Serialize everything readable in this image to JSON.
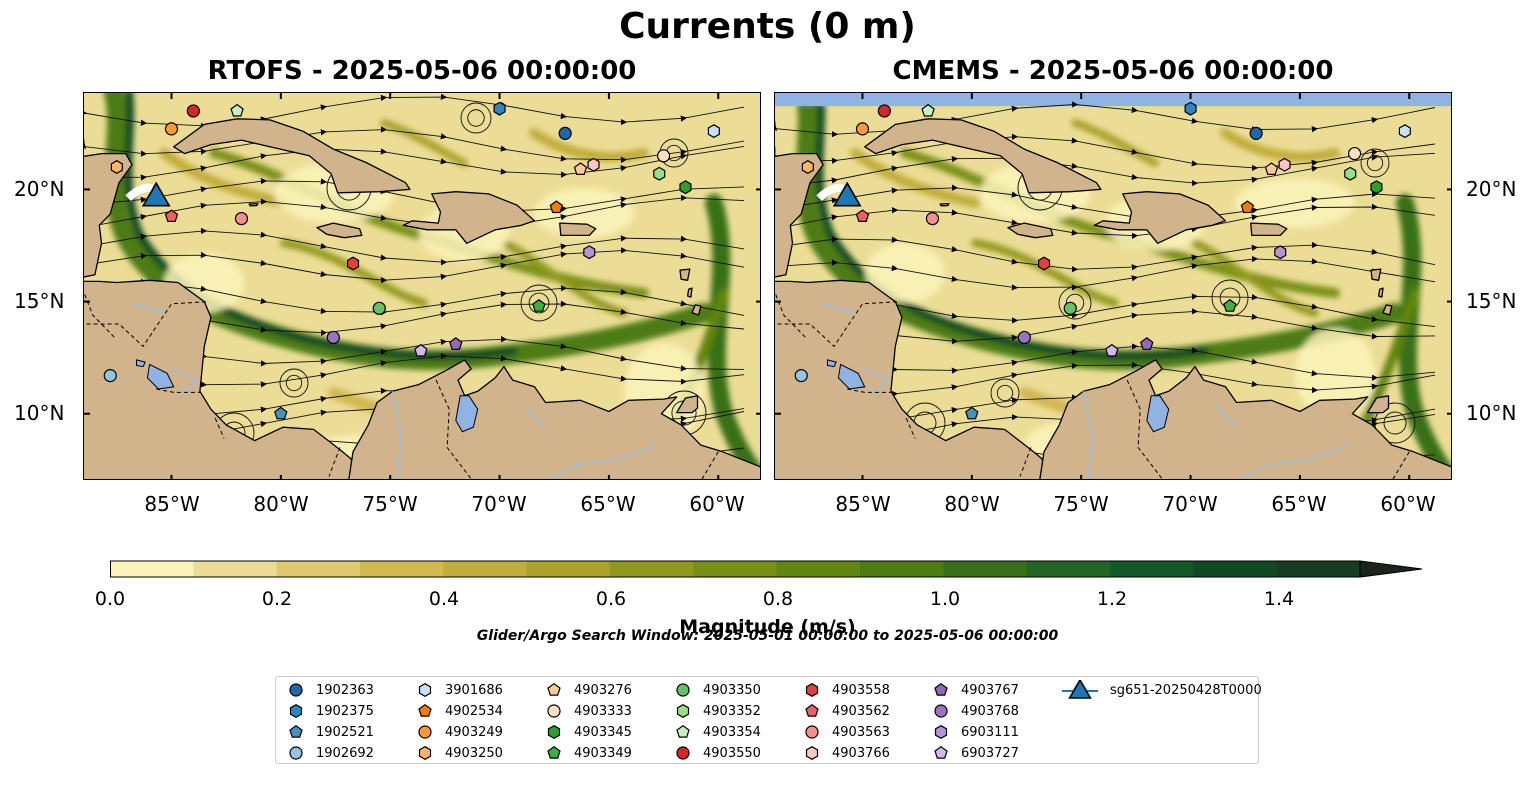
{
  "figure": {
    "title": "Currents (0 m)",
    "panels": [
      {
        "title": "RTOFS - 2025-05-06 00:00:00"
      },
      {
        "title": "CMEMS - 2025-05-06 00:00:00"
      }
    ],
    "lat_labels": [
      "20°N",
      "15°N",
      "10°N"
    ],
    "lon_labels": [
      "85°W",
      "80°W",
      "75°W",
      "70°W",
      "65°W",
      "60°W"
    ],
    "extent": {
      "lon_min": -89,
      "lon_max": -58,
      "lat_min": 7,
      "lat_max": 24.3
    }
  },
  "colorbar": {
    "label": "Magnitude (m/s)",
    "ticks": [
      "0.0",
      "0.2",
      "0.4",
      "0.6",
      "0.8",
      "1.0",
      "1.2",
      "1.4"
    ],
    "range": [
      0,
      1.5
    ],
    "extend": "max",
    "colors": [
      "#fbf3b9",
      "#ecdd96",
      "#dfc96e",
      "#d1b84f",
      "#c1ad3b",
      "#a8a22a",
      "#90981e",
      "#799016",
      "#628611",
      "#4d7c12",
      "#387017",
      "#236523",
      "#115925",
      "#0f4a24",
      "#173b23",
      "#1f2f1f",
      "#1a241a"
    ]
  },
  "search_window": "Glider/Argo Search Window: 2025-05-01 00:00:00 to 2025-05-06 00:00:00",
  "colors": {
    "land": "#d2b48c",
    "water": "#8fb4e3",
    "river": "#a2bdd9"
  },
  "legend": [
    {
      "label": "1902363",
      "marker": "circle",
      "color": "#2166ac"
    },
    {
      "label": "1902375",
      "marker": "hexagon",
      "color": "#2e86c1"
    },
    {
      "label": "1902521",
      "marker": "pentagon",
      "color": "#4393c3"
    },
    {
      "label": "1902692",
      "marker": "circle",
      "color": "#92c5de"
    },
    {
      "label": "3901686",
      "marker": "hexagon",
      "color": "#c6e2f5"
    },
    {
      "label": "4902534",
      "marker": "pentagon",
      "color": "#f57c00"
    },
    {
      "label": "4903249",
      "marker": "circle",
      "color": "#ff9933"
    },
    {
      "label": "4903250",
      "marker": "hexagon",
      "color": "#ffb366"
    },
    {
      "label": "4903276",
      "marker": "pentagon",
      "color": "#ffc896"
    },
    {
      "label": "4903333",
      "marker": "circle",
      "color": "#ffe0c0"
    },
    {
      "label": "4903345",
      "marker": "hexagon",
      "color": "#2ca02c"
    },
    {
      "label": "4903349",
      "marker": "pentagon",
      "color": "#3cb043"
    },
    {
      "label": "4903350",
      "marker": "circle",
      "color": "#66c266"
    },
    {
      "label": "4903352",
      "marker": "hexagon",
      "color": "#98df8a"
    },
    {
      "label": "4903354",
      "marker": "pentagon",
      "color": "#c7f2c0"
    },
    {
      "label": "4903550",
      "marker": "circle",
      "color": "#d62728"
    },
    {
      "label": "4903558",
      "marker": "hexagon",
      "color": "#e04040"
    },
    {
      "label": "4903562",
      "marker": "pentagon",
      "color": "#f06060"
    },
    {
      "label": "4903563",
      "marker": "circle",
      "color": "#f4908f"
    },
    {
      "label": "4903766",
      "marker": "hexagon",
      "color": "#fbc5c5"
    },
    {
      "label": "4903767",
      "marker": "pentagon",
      "color": "#9467bd"
    },
    {
      "label": "4903768",
      "marker": "circle",
      "color": "#9d72c6"
    },
    {
      "label": "6903111",
      "marker": "hexagon",
      "color": "#b594d6"
    },
    {
      "label": "6903727",
      "marker": "pentagon",
      "color": "#d2b7ee"
    },
    {
      "label": "sg651-20250428T0000",
      "marker": "triangle",
      "color": "#1f77b4"
    }
  ],
  "floats": [
    {
      "label": "1902363",
      "lon": -67,
      "lat": 22.5,
      "cmems_lon": -67,
      "cmems_lat": 22.5
    },
    {
      "label": "1902375",
      "lon": -70,
      "lat": 23.6,
      "cmems_lon": -70,
      "cmems_lat": 23.6
    },
    {
      "label": "1902521",
      "lon": -80,
      "lat": 10.0,
      "cmems_lon": -80,
      "cmems_lat": 10.0
    },
    {
      "label": "1902692",
      "lon": -87.8,
      "lat": 11.7,
      "cmems_lon": -87.8,
      "cmems_lat": 11.7
    },
    {
      "label": "3901686",
      "lon": -60.2,
      "lat": 22.6,
      "cmems_lon": -60.2,
      "cmems_lat": 22.6
    },
    {
      "label": "4902534",
      "lon": -67.4,
      "lat": 19.2,
      "cmems_lon": -67.4,
      "cmems_lat": 19.2
    },
    {
      "label": "4903249",
      "lon": -85,
      "lat": 22.7,
      "cmems_lon": -85,
      "cmems_lat": 22.7
    },
    {
      "label": "4903250",
      "lon": -87.5,
      "lat": 21.0,
      "cmems_lon": -87.5,
      "cmems_lat": 21.0
    },
    {
      "label": "4903276",
      "lon": -66.3,
      "lat": 20.9,
      "cmems_lon": -66.3,
      "cmems_lat": 20.9
    },
    {
      "label": "4903333",
      "lon": -62.5,
      "lat": 21.5,
      "cmems_lon": -62.5,
      "cmems_lat": 21.6
    },
    {
      "label": "4903345",
      "lon": -61.5,
      "lat": 20.1,
      "cmems_lon": -61.5,
      "cmems_lat": 20.1
    },
    {
      "label": "4903349",
      "lon": -68.2,
      "lat": 14.8,
      "cmems_lon": -68.2,
      "cmems_lat": 14.8
    },
    {
      "label": "4903350",
      "lon": -75.5,
      "lat": 14.7,
      "cmems_lon": -75.5,
      "cmems_lat": 14.7
    },
    {
      "label": "4903352",
      "lon": -62.7,
      "lat": 20.7,
      "cmems_lon": -62.7,
      "cmems_lat": 20.7
    },
    {
      "label": "4903354",
      "lon": -82,
      "lat": 23.5,
      "cmems_lon": -82,
      "cmems_lat": 23.5
    },
    {
      "label": "4903550",
      "lon": -84,
      "lat": 23.5,
      "cmems_lon": -84,
      "cmems_lat": 23.5
    },
    {
      "label": "4903558",
      "lon": -76.7,
      "lat": 16.7,
      "cmems_lon": -76.7,
      "cmems_lat": 16.7
    },
    {
      "label": "4903562",
      "lon": -85,
      "lat": 18.8,
      "cmems_lon": -85,
      "cmems_lat": 18.8
    },
    {
      "label": "4903563",
      "lon": -81.8,
      "lat": 18.7,
      "cmems_lon": -81.8,
      "cmems_lat": 18.7
    },
    {
      "label": "4903766",
      "lon": -65.7,
      "lat": 21.1,
      "cmems_lon": -65.7,
      "cmems_lat": 21.1
    },
    {
      "label": "4903767",
      "lon": -72,
      "lat": 13.1,
      "cmems_lon": -72,
      "cmems_lat": 13.1
    },
    {
      "label": "4903768",
      "lon": -77.6,
      "lat": 13.4,
      "cmems_lon": -77.6,
      "cmems_lat": 13.4
    },
    {
      "label": "6903111",
      "lon": -65.9,
      "lat": 17.2,
      "cmems_lon": -65.9,
      "cmems_lat": 17.2
    },
    {
      "label": "6903727",
      "lon": -73.6,
      "lat": 12.8,
      "cmems_lon": -73.6,
      "cmems_lat": 12.8
    }
  ],
  "glider": {
    "label": "sg651-20250428T0000",
    "lon": -85.7,
    "lat": 19.7
  }
}
